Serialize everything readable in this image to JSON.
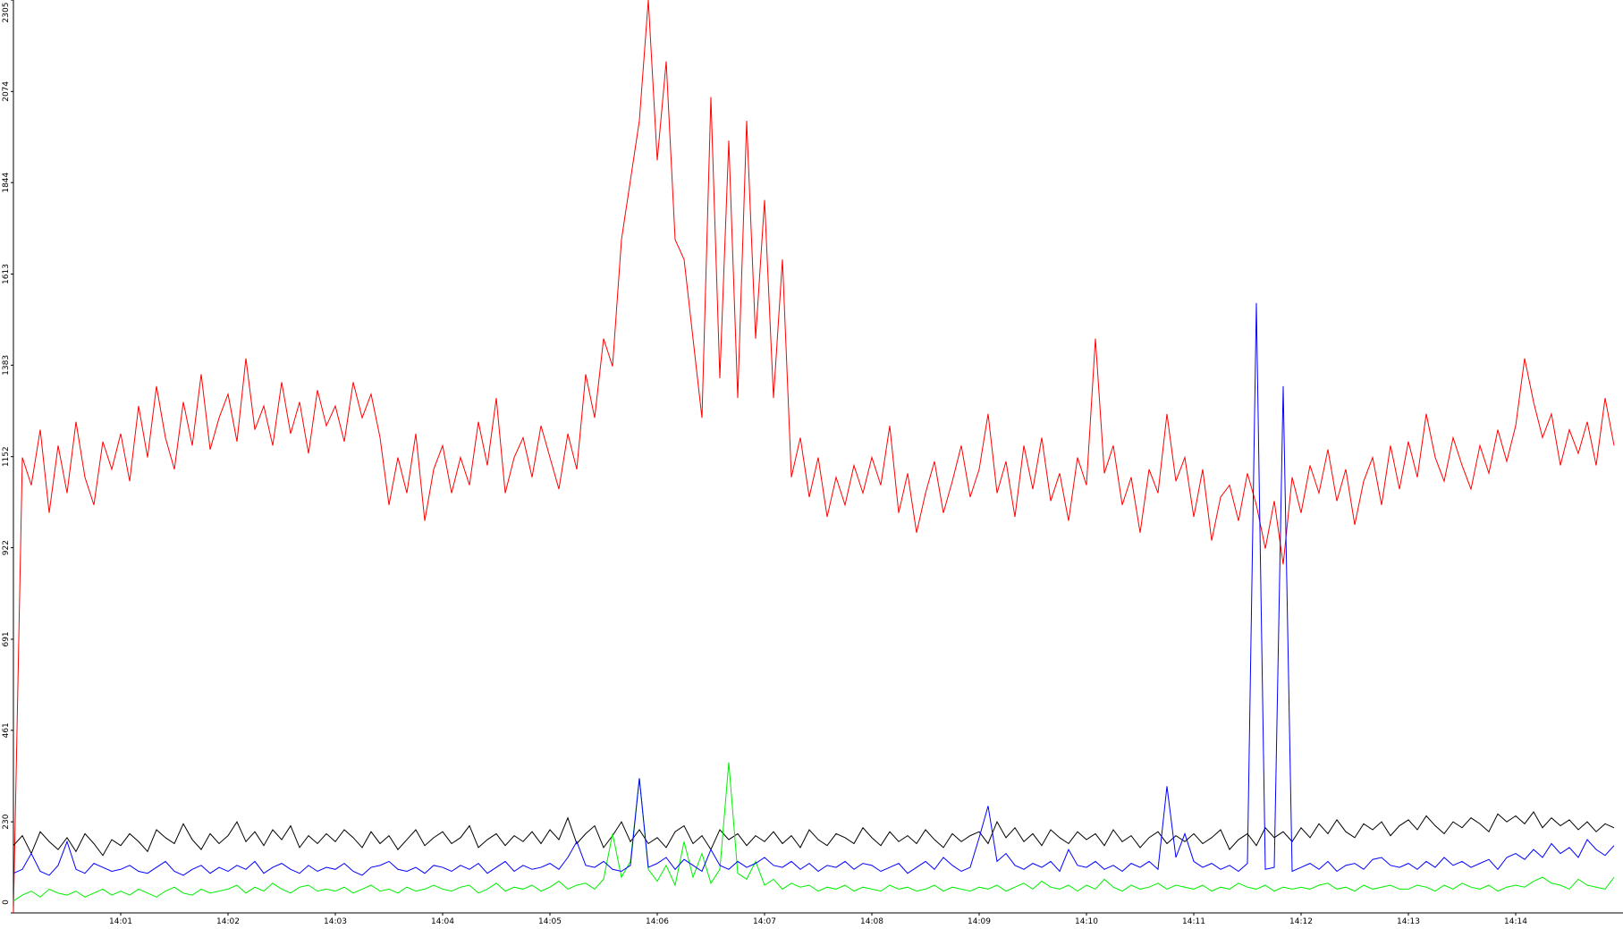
{
  "chart_data": {
    "type": "line",
    "categories": [
      null,
      null,
      null,
      null,
      null,
      null,
      null,
      null,
      null,
      null,
      null,
      null,
      "14:01",
      null,
      null,
      null,
      null,
      null,
      null,
      null,
      null,
      null,
      null,
      null,
      "14:02",
      null,
      null,
      null,
      null,
      null,
      null,
      null,
      null,
      null,
      null,
      null,
      "14:03",
      null,
      null,
      null,
      null,
      null,
      null,
      null,
      null,
      null,
      null,
      null,
      "14:04",
      null,
      null,
      null,
      null,
      null,
      null,
      null,
      null,
      null,
      null,
      null,
      "14:05",
      null,
      null,
      null,
      null,
      null,
      null,
      null,
      null,
      null,
      null,
      null,
      "14:06",
      null,
      null,
      null,
      null,
      null,
      null,
      null,
      null,
      null,
      null,
      null,
      "14:07",
      null,
      null,
      null,
      null,
      null,
      null,
      null,
      null,
      null,
      null,
      null,
      "14:08",
      null,
      null,
      null,
      null,
      null,
      null,
      null,
      null,
      null,
      null,
      null,
      "14:09",
      null,
      null,
      null,
      null,
      null,
      null,
      null,
      null,
      null,
      null,
      null,
      "14:10",
      null,
      null,
      null,
      null,
      null,
      null,
      null,
      null,
      null,
      null,
      null,
      "14:11",
      null,
      null,
      null,
      null,
      null,
      null,
      null,
      null,
      null,
      null,
      null,
      "14:12",
      null,
      null,
      null,
      null,
      null,
      null,
      null,
      null,
      null,
      null,
      null,
      "14:13",
      null,
      null,
      null,
      null,
      null,
      null,
      null,
      null,
      null,
      null,
      null,
      "14:14",
      null,
      null,
      null,
      null,
      null,
      null,
      null,
      null,
      null,
      null,
      null
    ],
    "series": [
      {
        "color": "#ff0000",
        "values": [
          0,
          1150,
          1080,
          1220,
          1010,
          1180,
          1060,
          1240,
          1100,
          1030,
          1190,
          1120,
          1210,
          1090,
          1280,
          1150,
          1330,
          1200,
          1120,
          1290,
          1180,
          1360,
          1170,
          1250,
          1310,
          1190,
          1400,
          1220,
          1280,
          1180,
          1340,
          1210,
          1290,
          1160,
          1320,
          1230,
          1280,
          1190,
          1340,
          1250,
          1310,
          1200,
          1030,
          1150,
          1060,
          1210,
          990,
          1120,
          1180,
          1060,
          1150,
          1080,
          1240,
          1130,
          1300,
          1060,
          1150,
          1200,
          1100,
          1230,
          1150,
          1070,
          1210,
          1120,
          1360,
          1250,
          1450,
          1380,
          1700,
          1850,
          2000,
          2305,
          1900,
          2150,
          1700,
          1650,
          1450,
          1250,
          2060,
          1350,
          1950,
          1300,
          2000,
          1450,
          1800,
          1300,
          1650,
          1100,
          1200,
          1050,
          1150,
          1000,
          1100,
          1030,
          1130,
          1060,
          1150,
          1080,
          1230,
          1010,
          1110,
          960,
          1060,
          1140,
          1010,
          1090,
          1180,
          1050,
          1120,
          1260,
          1060,
          1140,
          1000,
          1180,
          1070,
          1200,
          1040,
          1110,
          990,
          1150,
          1080,
          1450,
          1110,
          1180,
          1030,
          1100,
          960,
          1120,
          1060,
          1260,
          1090,
          1150,
          1000,
          1120,
          940,
          1050,
          1080,
          990,
          1110,
          1030,
          920,
          1040,
          880,
          1100,
          1010,
          1130,
          1060,
          1170,
          1040,
          1120,
          980,
          1090,
          1150,
          1030,
          1180,
          1070,
          1190,
          1100,
          1260,
          1150,
          1090,
          1200,
          1130,
          1070,
          1180,
          1110,
          1220,
          1140,
          1230,
          1400,
          1290,
          1200,
          1260,
          1130,
          1220,
          1160,
          1240,
          1130,
          1300,
          1180
        ]
      },
      {
        "color": "#000000",
        "values": [
          170,
          195,
          150,
          205,
          180,
          160,
          190,
          155,
          200,
          175,
          145,
          185,
          170,
          200,
          180,
          155,
          210,
          190,
          175,
          225,
          185,
          160,
          200,
          175,
          195,
          230,
          180,
          205,
          170,
          210,
          185,
          220,
          165,
          195,
          175,
          200,
          180,
          210,
          190,
          165,
          205,
          175,
          195,
          160,
          185,
          210,
          170,
          190,
          205,
          175,
          190,
          220,
          165,
          185,
          200,
          170,
          195,
          180,
          205,
          175,
          210,
          185,
          240,
          175,
          200,
          220,
          165,
          195,
          230,
          180,
          210,
          175,
          190,
          165,
          205,
          220,
          175,
          195,
          160,
          210,
          185,
          200,
          170,
          195,
          180,
          205,
          175,
          195,
          165,
          210,
          185,
          170,
          200,
          190,
          175,
          215,
          190,
          170,
          205,
          180,
          195,
          175,
          210,
          185,
          165,
          200,
          180,
          195,
          205,
          175,
          230,
          190,
          215,
          180,
          200,
          170,
          210,
          190,
          175,
          205,
          185,
          200,
          170,
          210,
          180,
          195,
          165,
          190,
          205,
          175,
          195,
          180,
          200,
          175,
          190,
          210,
          160,
          185,
          200,
          170,
          215,
          190,
          205,
          180,
          215,
          190,
          225,
          200,
          235,
          205,
          190,
          225,
          210,
          230,
          195,
          220,
          235,
          210,
          245,
          220,
          200,
          230,
          215,
          240,
          225,
          205,
          250,
          230,
          245,
          225,
          255,
          215,
          240,
          220,
          235,
          210,
          230,
          205,
          225,
          215
        ]
      },
      {
        "color": "#00ee00",
        "values": [
          30,
          45,
          55,
          40,
          60,
          50,
          45,
          55,
          40,
          50,
          60,
          45,
          55,
          45,
          60,
          50,
          40,
          55,
          65,
          50,
          45,
          60,
          50,
          55,
          60,
          70,
          50,
          65,
          55,
          75,
          60,
          50,
          65,
          70,
          55,
          60,
          55,
          65,
          50,
          60,
          70,
          55,
          60,
          50,
          65,
          55,
          60,
          70,
          60,
          55,
          65,
          70,
          50,
          60,
          75,
          55,
          65,
          60,
          70,
          55,
          65,
          80,
          60,
          70,
          75,
          60,
          85,
          200,
          90,
          130,
          340,
          110,
          80,
          120,
          70,
          180,
          90,
          150,
          75,
          110,
          380,
          100,
          85,
          130,
          70,
          85,
          60,
          75,
          65,
          70,
          55,
          65,
          60,
          70,
          55,
          65,
          60,
          55,
          70,
          60,
          65,
          55,
          60,
          70,
          55,
          65,
          60,
          55,
          65,
          60,
          70,
          55,
          65,
          75,
          60,
          80,
          65,
          60,
          70,
          55,
          70,
          60,
          85,
          65,
          55,
          70,
          60,
          65,
          75,
          60,
          70,
          65,
          60,
          70,
          55,
          65,
          60,
          75,
          65,
          60,
          70,
          55,
          65,
          60,
          65,
          60,
          70,
          75,
          60,
          65,
          55,
          70,
          60,
          65,
          70,
          60,
          60,
          70,
          65,
          55,
          70,
          60,
          75,
          65,
          60,
          70,
          55,
          65,
          70,
          65,
          80,
          90,
          75,
          70,
          60,
          85,
          70,
          65,
          60,
          90
        ]
      },
      {
        "color": "#0000ff",
        "values": [
          100,
          110,
          150,
          105,
          95,
          120,
          180,
          110,
          100,
          125,
          115,
          105,
          110,
          120,
          105,
          100,
          115,
          130,
          105,
          95,
          110,
          120,
          100,
          115,
          105,
          120,
          110,
          130,
          100,
          115,
          125,
          110,
          100,
          120,
          105,
          115,
          110,
          125,
          105,
          95,
          115,
          120,
          130,
          110,
          105,
          115,
          100,
          120,
          115,
          105,
          120,
          110,
          125,
          100,
          115,
          130,
          105,
          120,
          110,
          115,
          125,
          110,
          140,
          180,
          120,
          115,
          130,
          110,
          105,
          120,
          340,
          115,
          125,
          140,
          110,
          135,
          120,
          105,
          160,
          120,
          110,
          130,
          115,
          125,
          140,
          120,
          115,
          130,
          110,
          125,
          105,
          120,
          115,
          130,
          110,
          125,
          120,
          105,
          115,
          125,
          100,
          115,
          130,
          110,
          140,
          120,
          105,
          115,
          190,
          270,
          130,
          150,
          120,
          110,
          125,
          115,
          130,
          105,
          160,
          120,
          115,
          130,
          110,
          120,
          105,
          125,
          115,
          130,
          110,
          320,
          140,
          200,
          130,
          115,
          125,
          110,
          120,
          105,
          125,
          1540,
          110,
          115,
          1330,
          105,
          115,
          125,
          110,
          130,
          105,
          120,
          125,
          110,
          135,
          140,
          120,
          115,
          125,
          110,
          130,
          115,
          140,
          120,
          130,
          115,
          125,
          135,
          110,
          140,
          150,
          135,
          160,
          140,
          175,
          150,
          165,
          140,
          185,
          160,
          145,
          170
        ]
      }
    ],
    "ylim": [
      0,
      2305
    ],
    "yticks": [
      0,
      230,
      461,
      691,
      922,
      1152,
      1383,
      1613,
      1844,
      2074,
      2305
    ],
    "grid": false
  }
}
